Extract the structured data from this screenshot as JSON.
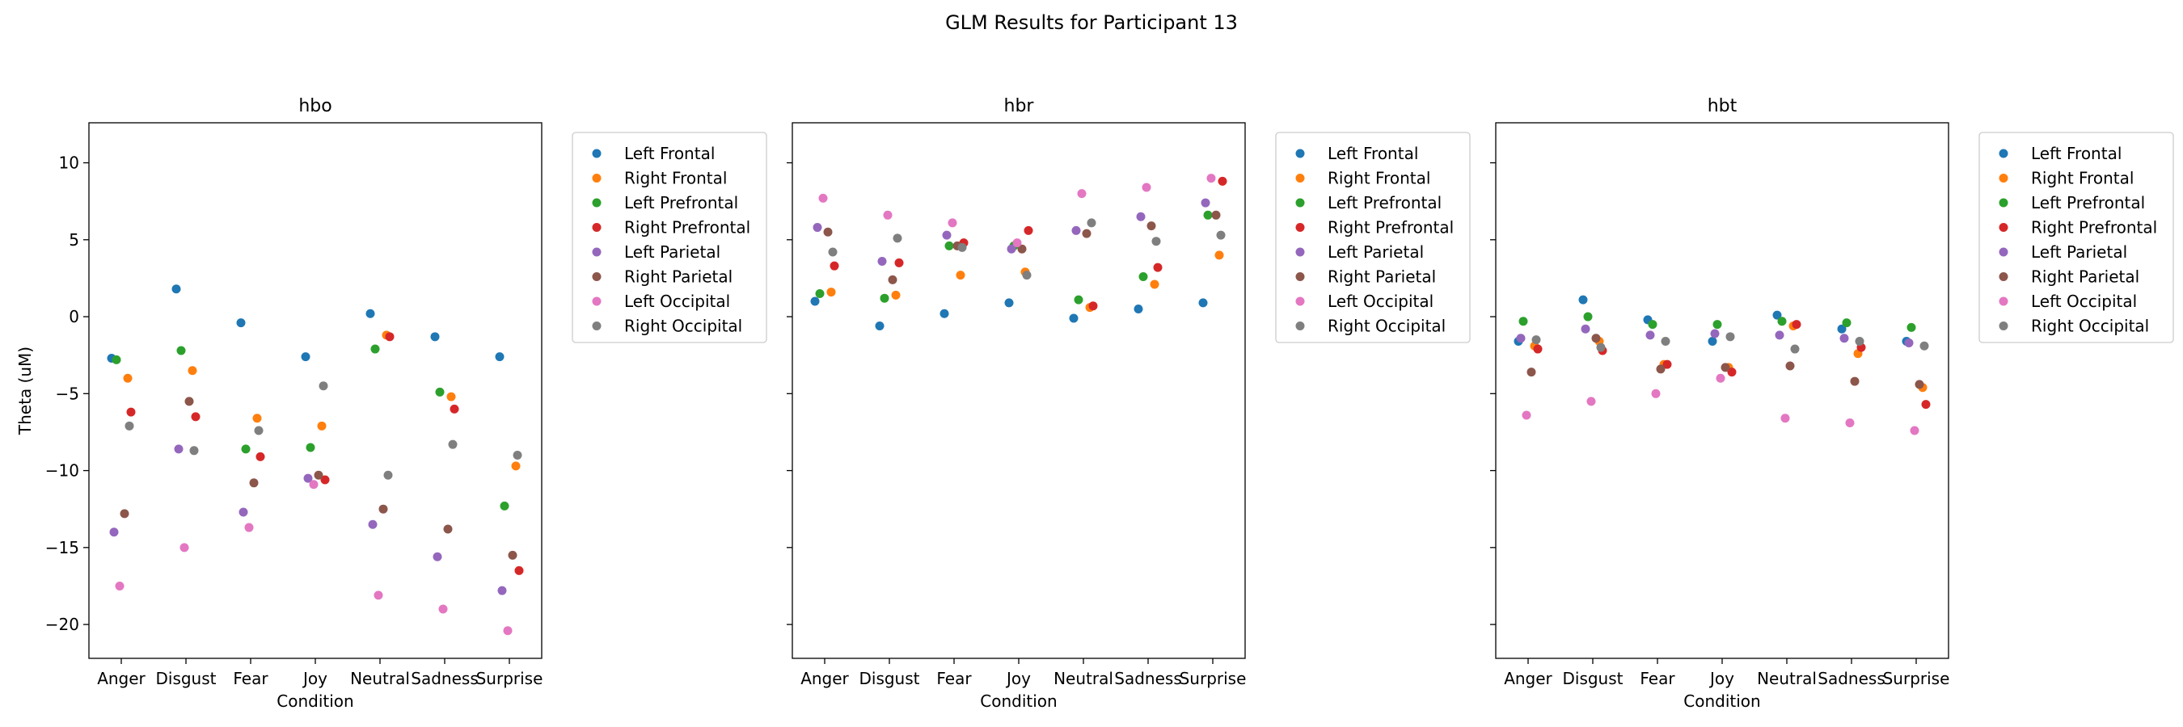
{
  "figure_title": "GLM Results for Participant 13",
  "chart_data": [
    {
      "type": "scatter",
      "title": "hbo",
      "xlabel": "Condition",
      "ylabel": "Theta (uM)",
      "ylim": [
        -22.2,
        12.6
      ],
      "yticks": [
        10,
        5,
        0,
        -5,
        -10,
        -15,
        -20
      ],
      "categories": [
        "Anger",
        "Disgust",
        "Fear",
        "Joy",
        "Neutral",
        "Sadness",
        "Surprise"
      ],
      "legend_location": "outside upper right",
      "series": [
        {
          "name": "Left Frontal",
          "color": "#1f77b4",
          "values": [
            -2.7,
            1.8,
            -0.4,
            -2.6,
            0.2,
            -1.3,
            -2.6
          ]
        },
        {
          "name": "Right Frontal",
          "color": "#ff7f0e",
          "values": [
            -4.0,
            -3.5,
            -6.6,
            -7.1,
            -1.2,
            -5.2,
            -9.7
          ]
        },
        {
          "name": "Left Prefrontal",
          "color": "#2ca02c",
          "values": [
            -2.8,
            -2.2,
            -8.6,
            -8.5,
            -2.1,
            -4.9,
            -12.3
          ]
        },
        {
          "name": "Right Prefrontal",
          "color": "#d62728",
          "values": [
            -6.2,
            -6.5,
            -9.1,
            -10.6,
            -1.3,
            -6.0,
            -16.5
          ]
        },
        {
          "name": "Left Parietal",
          "color": "#9467bd",
          "values": [
            -14.0,
            -8.6,
            -12.7,
            -10.5,
            -13.5,
            -15.6,
            -17.8
          ]
        },
        {
          "name": "Right Parietal",
          "color": "#8c564b",
          "values": [
            -12.8,
            -5.5,
            -10.8,
            -10.3,
            -12.5,
            -13.8,
            -15.5
          ]
        },
        {
          "name": "Left Occipital",
          "color": "#e377c2",
          "values": [
            -17.5,
            -15.0,
            -13.7,
            -10.9,
            -18.1,
            -19.0,
            -20.4
          ]
        },
        {
          "name": "Right Occipital",
          "color": "#7f7f7f",
          "values": [
            -7.1,
            -8.7,
            -7.4,
            -4.5,
            -10.3,
            -8.3,
            -9.0
          ]
        }
      ]
    },
    {
      "type": "scatter",
      "title": "hbr",
      "xlabel": "Condition",
      "ylabel": "",
      "ylim": [
        -22.2,
        12.6
      ],
      "categories": [
        "Anger",
        "Disgust",
        "Fear",
        "Joy",
        "Neutral",
        "Sadness",
        "Surprise"
      ],
      "legend_location": "outside upper right",
      "series": [
        {
          "name": "Left Frontal",
          "color": "#1f77b4",
          "values": [
            1.0,
            -0.6,
            0.2,
            0.9,
            -0.1,
            0.5,
            0.9
          ]
        },
        {
          "name": "Right Frontal",
          "color": "#ff7f0e",
          "values": [
            1.6,
            1.4,
            2.7,
            2.9,
            0.6,
            2.1,
            4.0
          ]
        },
        {
          "name": "Left Prefrontal",
          "color": "#2ca02c",
          "values": [
            1.5,
            1.2,
            4.6,
            4.6,
            1.1,
            2.6,
            6.6
          ]
        },
        {
          "name": "Right Prefrontal",
          "color": "#d62728",
          "values": [
            3.3,
            3.5,
            4.8,
            5.6,
            0.7,
            3.2,
            8.8
          ]
        },
        {
          "name": "Left Parietal",
          "color": "#9467bd",
          "values": [
            5.8,
            3.6,
            5.3,
            4.4,
            5.6,
            6.5,
            7.4
          ]
        },
        {
          "name": "Right Parietal",
          "color": "#8c564b",
          "values": [
            5.5,
            2.4,
            4.6,
            4.4,
            5.4,
            5.9,
            6.6
          ]
        },
        {
          "name": "Left Occipital",
          "color": "#e377c2",
          "values": [
            7.7,
            6.6,
            6.1,
            4.8,
            8.0,
            8.4,
            9.0
          ]
        },
        {
          "name": "Right Occipital",
          "color": "#7f7f7f",
          "values": [
            4.2,
            5.1,
            4.5,
            2.7,
            6.1,
            4.9,
            5.3
          ]
        }
      ]
    },
    {
      "type": "scatter",
      "title": "hbt",
      "xlabel": "Condition",
      "ylabel": "",
      "ylim": [
        -22.2,
        12.6
      ],
      "categories": [
        "Anger",
        "Disgust",
        "Fear",
        "Joy",
        "Neutral",
        "Sadness",
        "Surprise"
      ],
      "legend_location": "outside upper right",
      "series": [
        {
          "name": "Left Frontal",
          "color": "#1f77b4",
          "values": [
            -1.6,
            1.1,
            -0.2,
            -1.6,
            0.1,
            -0.8,
            -1.6
          ]
        },
        {
          "name": "Right Frontal",
          "color": "#ff7f0e",
          "values": [
            -1.9,
            -1.6,
            -3.1,
            -3.3,
            -0.6,
            -2.4,
            -4.6
          ]
        },
        {
          "name": "Left Prefrontal",
          "color": "#2ca02c",
          "values": [
            -0.3,
            0.0,
            -0.5,
            -0.5,
            -0.3,
            -0.4,
            -0.7
          ]
        },
        {
          "name": "Right Prefrontal",
          "color": "#d62728",
          "values": [
            -2.1,
            -2.2,
            -3.1,
            -3.6,
            -0.5,
            -2.0,
            -5.7
          ]
        },
        {
          "name": "Left Parietal",
          "color": "#9467bd",
          "values": [
            -1.4,
            -0.8,
            -1.2,
            -1.1,
            -1.2,
            -1.4,
            -1.7
          ]
        },
        {
          "name": "Right Parietal",
          "color": "#8c564b",
          "values": [
            -3.6,
            -1.4,
            -3.4,
            -3.3,
            -3.2,
            -4.2,
            -4.4
          ]
        },
        {
          "name": "Left Occipital",
          "color": "#e377c2",
          "values": [
            -6.4,
            -5.5,
            -5.0,
            -4.0,
            -6.6,
            -6.9,
            -7.4
          ]
        },
        {
          "name": "Right Occipital",
          "color": "#7f7f7f",
          "values": [
            -1.5,
            -2.0,
            -1.6,
            -1.3,
            -2.1,
            -1.6,
            -1.9
          ]
        }
      ]
    }
  ]
}
